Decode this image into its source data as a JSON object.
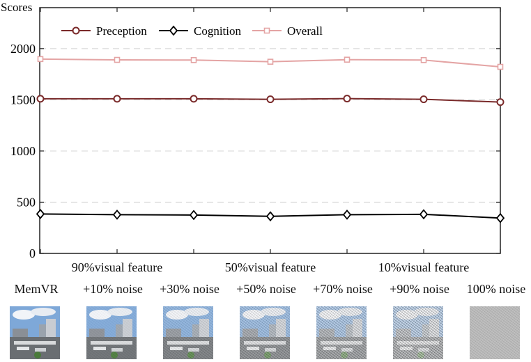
{
  "chart_data": {
    "type": "line",
    "ylabel": "Scores",
    "ylim": [
      0,
      2400
    ],
    "yticks": [
      0,
      500,
      1000,
      1500,
      2000
    ],
    "grid": "horizontal-dashed",
    "legend_position": "top-left",
    "x": [
      0,
      1,
      2,
      3,
      4,
      5,
      6
    ],
    "series": [
      {
        "name": "Preception",
        "marker": "circle",
        "color": "#7a2a2a",
        "values": [
          1510,
          1510,
          1510,
          1505,
          1512,
          1505,
          1478
        ]
      },
      {
        "name": "Cognition",
        "marker": "diamond",
        "color": "#000000",
        "values": [
          385,
          378,
          375,
          362,
          378,
          382,
          345
        ]
      },
      {
        "name": "Overall",
        "marker": "square",
        "color": "#e4a4a4",
        "values": [
          1898,
          1890,
          1888,
          1872,
          1892,
          1888,
          1822
        ]
      }
    ],
    "group_labels": [
      {
        "text": "90%visual feature",
        "at": 1.0
      },
      {
        "text": "50%visual feature",
        "at": 3.0
      },
      {
        "text": "10%visual feature",
        "at": 5.0
      }
    ],
    "condition_labels": [
      "MemVR",
      "+10% noise",
      "+30% noise",
      "+50% noise",
      "+70% noise",
      "+90% noise",
      "100% noise"
    ],
    "noise_levels": [
      0,
      0.1,
      0.3,
      0.5,
      0.7,
      0.9,
      1.0
    ]
  },
  "colors": {
    "grid": "#d9d9d9",
    "axis": "#222222"
  }
}
